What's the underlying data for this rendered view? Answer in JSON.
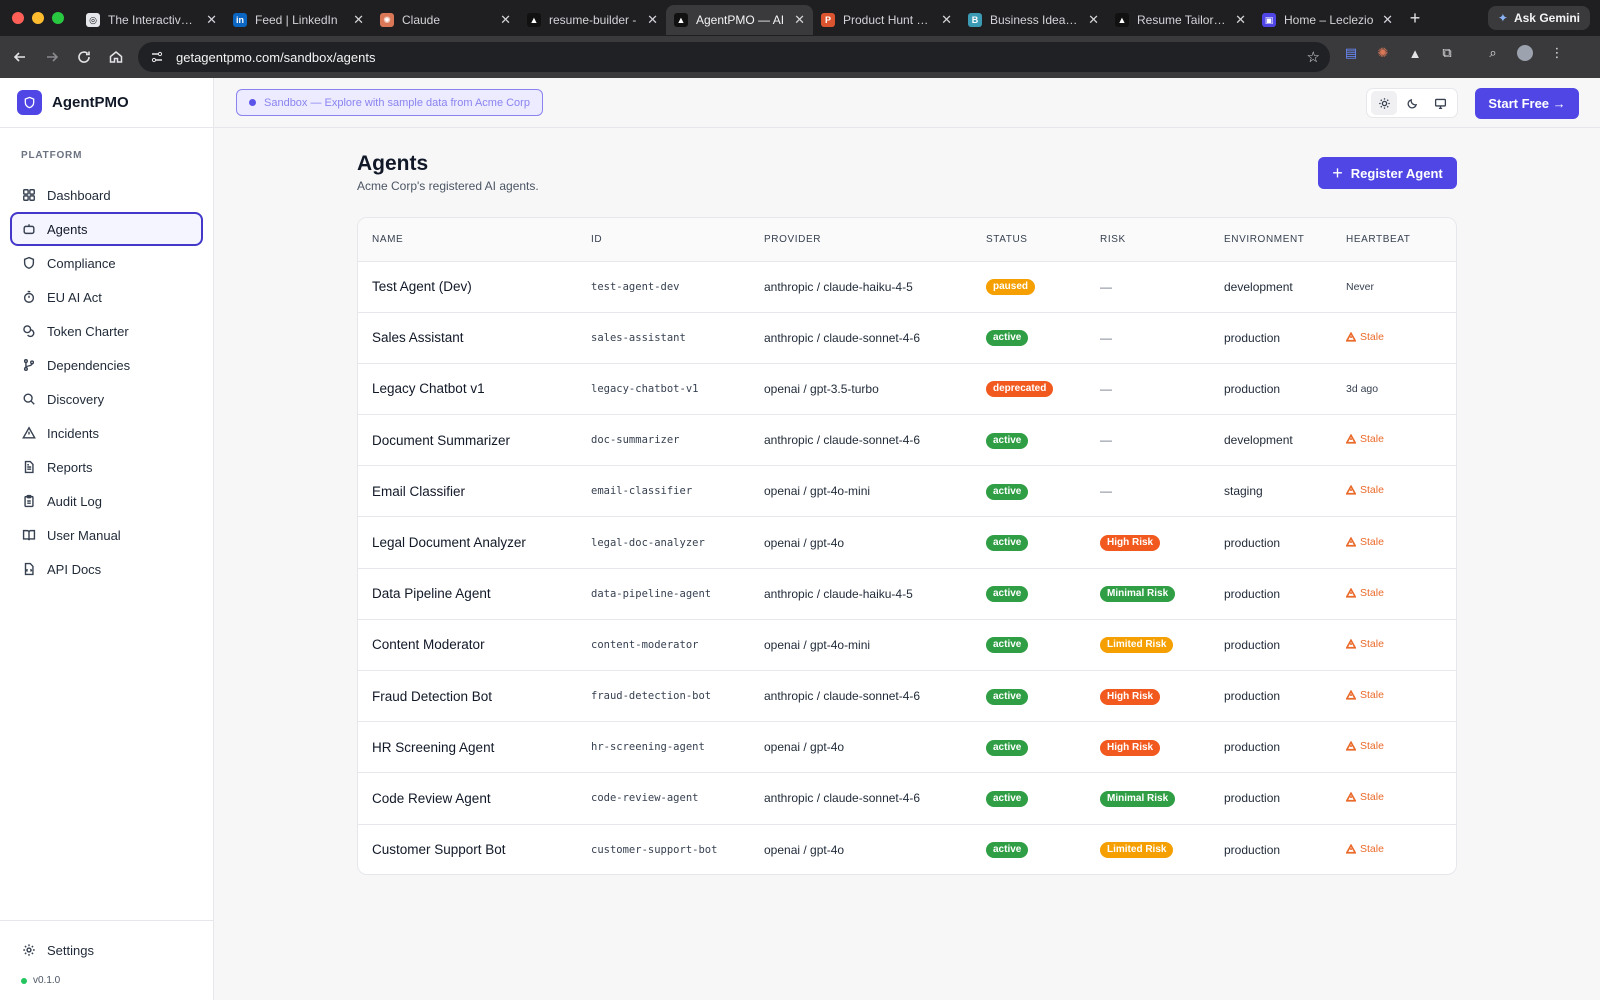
{
  "browser": {
    "tabs": [
      {
        "title": "The Interactive P",
        "favicon_color": "#e5e7eb",
        "favicon_glyph": "◎",
        "active": false
      },
      {
        "title": "Feed | LinkedIn",
        "favicon_color": "#0a66c2",
        "favicon_glyph": "in",
        "active": false
      },
      {
        "title": "Claude",
        "favicon_color": "#d97757",
        "favicon_glyph": "✺",
        "active": false
      },
      {
        "title": "resume-builder -",
        "favicon_color": "#111111",
        "favicon_glyph": "▲",
        "active": false
      },
      {
        "title": "AgentPMO — AI",
        "favicon_color": "#111111",
        "favicon_glyph": "▲",
        "active": true
      },
      {
        "title": "Product Hunt – T",
        "favicon_color": "#da552f",
        "favicon_glyph": "P",
        "active": false
      },
      {
        "title": "Business Idea Va",
        "favicon_color": "#3b9bb5",
        "favicon_glyph": "B",
        "active": false
      },
      {
        "title": "Resume Tailor —",
        "favicon_color": "#111111",
        "favicon_glyph": "▲",
        "active": false
      },
      {
        "title": "Home – Leclezio",
        "favicon_color": "#4f46e5",
        "favicon_glyph": "▣",
        "active": false
      }
    ],
    "ask_gemini": "Ask Gemini",
    "url": "getagentpmo.com/sandbox/agents"
  },
  "brand": {
    "name": "AgentPMO",
    "accent": "#4f46e5"
  },
  "sidebar": {
    "section_label": "PLATFORM",
    "items": [
      {
        "label": "Dashboard",
        "icon": "grid-icon"
      },
      {
        "label": "Agents",
        "icon": "bot-icon",
        "active": true
      },
      {
        "label": "Compliance",
        "icon": "shield-icon"
      },
      {
        "label": "EU AI Act",
        "icon": "timer-icon"
      },
      {
        "label": "Token Charter",
        "icon": "coins-icon"
      },
      {
        "label": "Dependencies",
        "icon": "git-branch-icon"
      },
      {
        "label": "Discovery",
        "icon": "search-icon"
      },
      {
        "label": "Incidents",
        "icon": "alert-triangle-icon"
      },
      {
        "label": "Reports",
        "icon": "file-text-icon"
      },
      {
        "label": "Audit Log",
        "icon": "clipboard-icon"
      },
      {
        "label": "User Manual",
        "icon": "book-icon"
      },
      {
        "label": "API Docs",
        "icon": "file-code-icon"
      }
    ],
    "settings_label": "Settings",
    "version": "v0.1.0"
  },
  "topbar": {
    "sandbox_text": "Sandbox — Explore with sample data from Acme Corp",
    "start_label": "Start Free →"
  },
  "page": {
    "title": "Agents",
    "subtitle": "Acme Corp's registered AI agents.",
    "register_label": "Register Agent"
  },
  "table": {
    "columns": [
      "NAME",
      "ID",
      "PROVIDER",
      "STATUS",
      "RISK",
      "ENVIRONMENT",
      "HEARTBEAT"
    ],
    "rows": [
      {
        "name": "Test Agent (Dev)",
        "id": "test-agent-dev",
        "provider": "anthropic / claude-haiku-4-5",
        "status": "paused",
        "risk": "",
        "environment": "development",
        "heartbeat": "Never"
      },
      {
        "name": "Sales Assistant",
        "id": "sales-assistant",
        "provider": "anthropic / claude-sonnet-4-6",
        "status": "active",
        "risk": "",
        "environment": "production",
        "heartbeat": "Stale"
      },
      {
        "name": "Legacy Chatbot v1",
        "id": "legacy-chatbot-v1",
        "provider": "openai / gpt-3.5-turbo",
        "status": "deprecated",
        "risk": "",
        "environment": "production",
        "heartbeat": "3d ago"
      },
      {
        "name": "Document Summarizer",
        "id": "doc-summarizer",
        "provider": "anthropic / claude-sonnet-4-6",
        "status": "active",
        "risk": "",
        "environment": "development",
        "heartbeat": "Stale"
      },
      {
        "name": "Email Classifier",
        "id": "email-classifier",
        "provider": "openai / gpt-4o-mini",
        "status": "active",
        "risk": "",
        "environment": "staging",
        "heartbeat": "Stale"
      },
      {
        "name": "Legal Document Analyzer",
        "id": "legal-doc-analyzer",
        "provider": "openai / gpt-4o",
        "status": "active",
        "risk": "High Risk",
        "environment": "production",
        "heartbeat": "Stale"
      },
      {
        "name": "Data Pipeline Agent",
        "id": "data-pipeline-agent",
        "provider": "anthropic / claude-haiku-4-5",
        "status": "active",
        "risk": "Minimal Risk",
        "environment": "production",
        "heartbeat": "Stale"
      },
      {
        "name": "Content Moderator",
        "id": "content-moderator",
        "provider": "openai / gpt-4o-mini",
        "status": "active",
        "risk": "Limited Risk",
        "environment": "production",
        "heartbeat": "Stale"
      },
      {
        "name": "Fraud Detection Bot",
        "id": "fraud-detection-bot",
        "provider": "anthropic / claude-sonnet-4-6",
        "status": "active",
        "risk": "High Risk",
        "environment": "production",
        "heartbeat": "Stale"
      },
      {
        "name": "HR Screening Agent",
        "id": "hr-screening-agent",
        "provider": "openai / gpt-4o",
        "status": "active",
        "risk": "High Risk",
        "environment": "production",
        "heartbeat": "Stale"
      },
      {
        "name": "Code Review Agent",
        "id": "code-review-agent",
        "provider": "anthropic / claude-sonnet-4-6",
        "status": "active",
        "risk": "Minimal Risk",
        "environment": "production",
        "heartbeat": "Stale"
      },
      {
        "name": "Customer Support Bot",
        "id": "customer-support-bot",
        "provider": "openai / gpt-4o",
        "status": "active",
        "risk": "Limited Risk",
        "environment": "production",
        "heartbeat": "Stale"
      }
    ],
    "empty_risk": "—"
  },
  "colors": {
    "status": {
      "active": "#2f9e44",
      "paused": "#f59f00",
      "deprecated": "#f2591f"
    },
    "risk": {
      "High Risk": "#f2591f",
      "Minimal Risk": "#2f9e44",
      "Limited Risk": "#f59f00"
    },
    "stale": "#ea6a2a"
  }
}
